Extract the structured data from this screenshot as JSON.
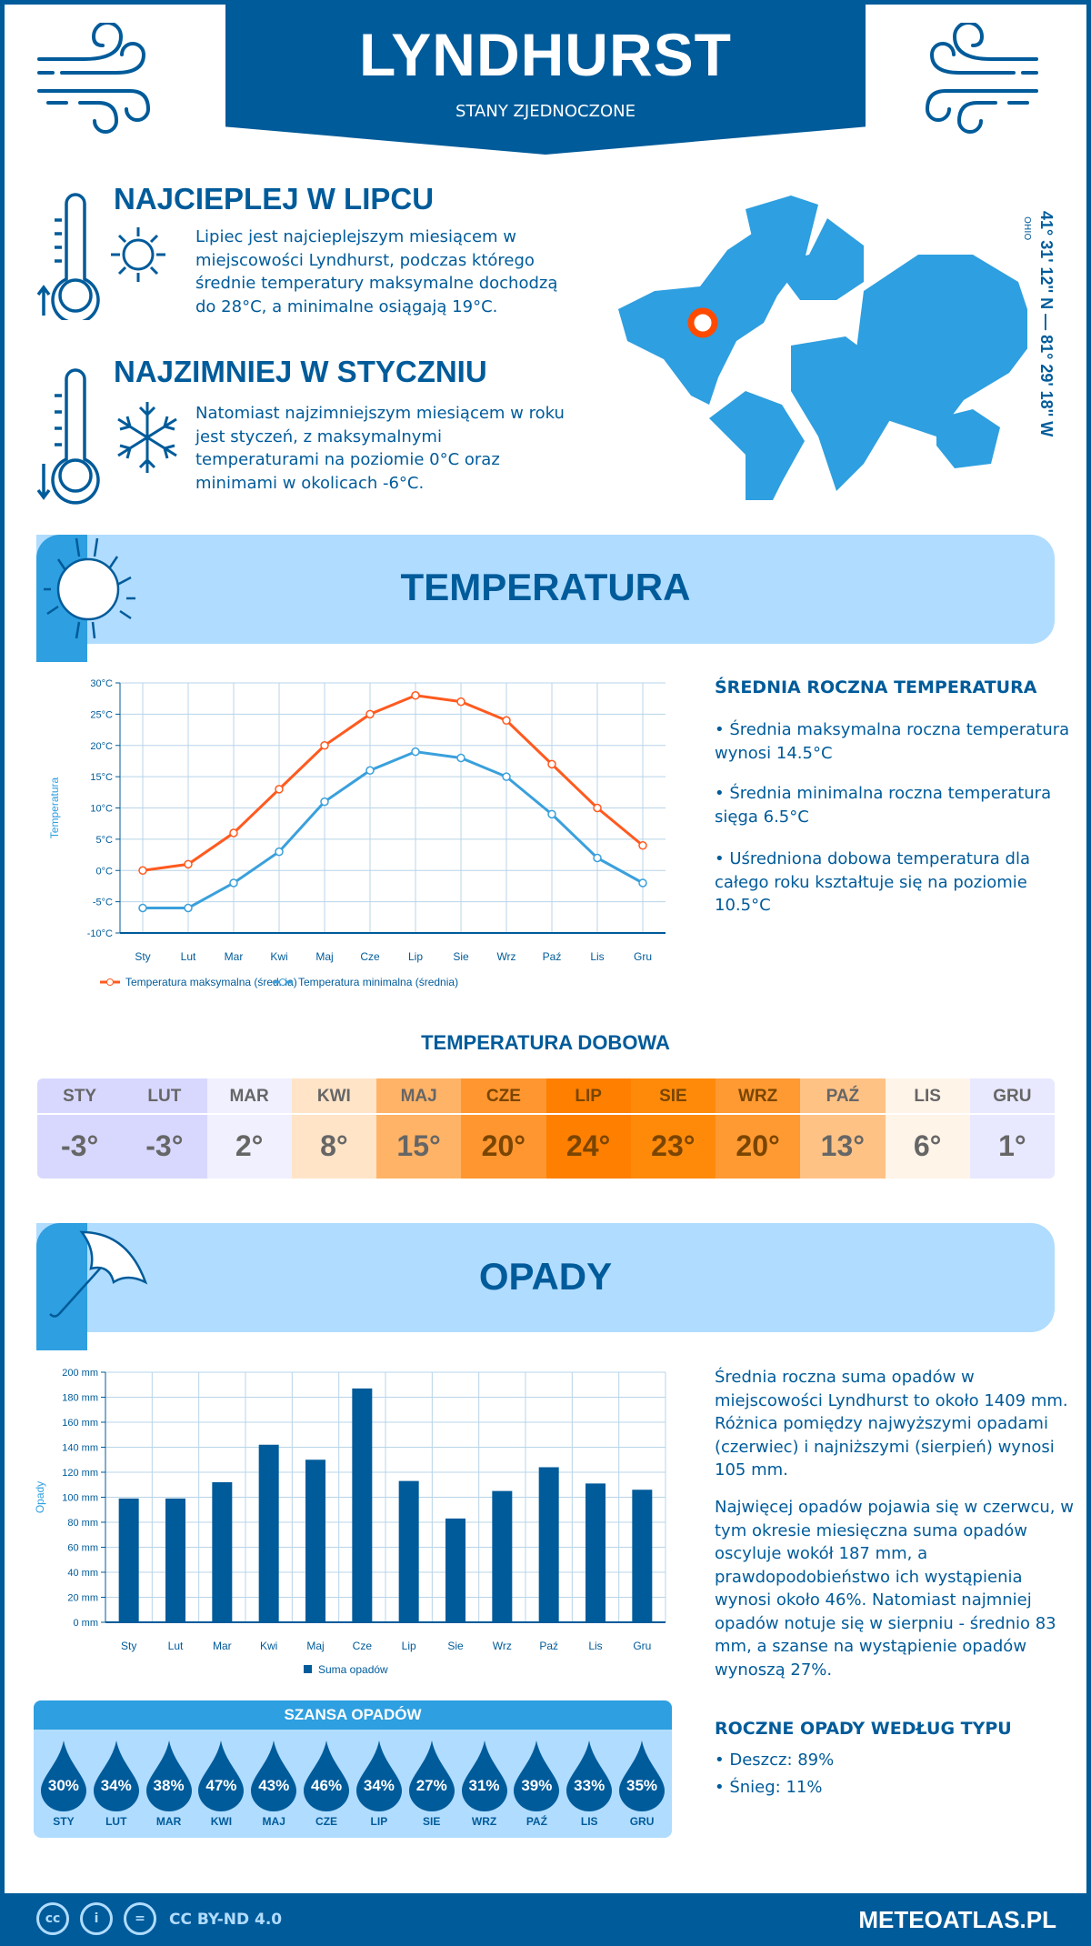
{
  "header": {
    "title": "LYNDHURST",
    "subtitle": "STANY ZJEDNOCZONE"
  },
  "warmest": {
    "heading": "NAJCIEPLEJ W LIPCU",
    "text": "Lipiec jest najcieplejszym miesiącem w miejscowości Lyndhurst, podczas którego średnie temperatury maksymalne dochodzą do 28°C, a minimalne osiągają 19°C."
  },
  "coldest": {
    "heading": "NAJZIMNIEJ W STYCZNIU",
    "text": "Natomiast najzimniejszym miesiącem w roku jest styczeń, z maksymalnymi temperaturami na poziomie 0°C oraz minimami w okolicach -6°C."
  },
  "location": {
    "coords": "41° 31' 12'' N — 81° 29' 18'' W",
    "region": "OHIO",
    "marker_color": "#ff4a00"
  },
  "temperature_section": {
    "title": "TEMPERATURA",
    "summary": {
      "heading": "ŚREDNIA ROCZNA TEMPERATURA",
      "bullets": [
        "• Średnia maksymalna roczna temperatura wynosi 14.5°C",
        "• Średnia minimalna roczna temperatura sięga 6.5°C",
        "• Uśredniona dobowa temperatura dla całego roku kształtuje się na poziomie 10.5°C"
      ]
    },
    "daily": {
      "title": "TEMPERATURA DOBOWA",
      "months": [
        "STY",
        "LUT",
        "MAR",
        "KWI",
        "MAJ",
        "CZE",
        "LIP",
        "SIE",
        "WRZ",
        "PAŹ",
        "LIS",
        "GRU"
      ],
      "values": [
        "-3°",
        "-3°",
        "2°",
        "8°",
        "15°",
        "20°",
        "24°",
        "23°",
        "20°",
        "13°",
        "6°",
        "1°"
      ],
      "colors": [
        "#d8d8ff",
        "#d8d8ff",
        "#f0f0ff",
        "#ffe4c8",
        "#ffb366",
        "#ff9630",
        "#ff7f00",
        "#ff8a0a",
        "#ff9a33",
        "#ffc285",
        "#fff4e8",
        "#e8e8ff"
      ]
    }
  },
  "precip_section": {
    "title": "OPADY",
    "text1": "Średnia roczna suma opadów w miejscowości Lyndhurst to około 1409 mm. Różnica pomiędzy najwyższymi opadami (czerwiec) i najniższymi (sierpień) wynosi 105 mm.",
    "text2": "Najwięcej opadów pojawia się w czerwcu, w tym okresie miesięczna suma opadów oscyluje wokół 187 mm, a prawdopodobieństwo ich wystąpienia wynosi około 46%. Natomiast najmniej opadów notuje się w sierpniu - średnio 83 mm, a szanse na wystąpienie opadów wynoszą 27%.",
    "chance": {
      "title": "SZANSA OPADÓW",
      "months": [
        "STY",
        "LUT",
        "MAR",
        "KWI",
        "MAJ",
        "CZE",
        "LIP",
        "SIE",
        "WRZ",
        "PAŹ",
        "LIS",
        "GRU"
      ],
      "values": [
        "30%",
        "34%",
        "38%",
        "47%",
        "43%",
        "46%",
        "34%",
        "27%",
        "31%",
        "39%",
        "33%",
        "35%"
      ]
    },
    "types": {
      "heading": "ROCZNE OPADY WEDŁUG TYPU",
      "items": [
        "• Deszcz: 89%",
        "• Śnieg: 11%"
      ]
    }
  },
  "chart_data": [
    {
      "type": "line",
      "categories": [
        "Sty",
        "Lut",
        "Mar",
        "Kwi",
        "Maj",
        "Cze",
        "Lip",
        "Sie",
        "Wrz",
        "Paź",
        "Lis",
        "Gru"
      ],
      "ylabel": "Temperatura",
      "ylim": [
        -10,
        30
      ],
      "yticks": [
        "-10°C",
        "-5°C",
        "0°C",
        "5°C",
        "10°C",
        "15°C",
        "20°C",
        "25°C",
        "30°C"
      ],
      "grid": true,
      "legend": "bottom",
      "series": [
        {
          "name": "Temperatura maksymalna (średnia)",
          "color": "#ff5a1f",
          "values": [
            0,
            1,
            6,
            13,
            20,
            25,
            28,
            27,
            24,
            17,
            10,
            4
          ]
        },
        {
          "name": "Temperatura minimalna (średnia)",
          "color": "#3aa0dc",
          "values": [
            -6,
            -6,
            -2,
            3,
            11,
            16,
            19,
            18,
            15,
            9,
            2,
            -2
          ]
        }
      ]
    },
    {
      "type": "bar",
      "categories": [
        "Sty",
        "Lut",
        "Mar",
        "Kwi",
        "Maj",
        "Cze",
        "Lip",
        "Sie",
        "Wrz",
        "Paź",
        "Lis",
        "Gru"
      ],
      "ylabel": "Opady",
      "ylim": [
        0,
        200
      ],
      "yticks": [
        "0 mm",
        "20 mm",
        "40 mm",
        "60 mm",
        "80 mm",
        "100 mm",
        "120 mm",
        "140 mm",
        "160 mm",
        "180 mm",
        "200 mm"
      ],
      "grid": true,
      "legend": "bottom",
      "series": [
        {
          "name": "Suma opadów",
          "color": "#005b9a",
          "values": [
            99,
            99,
            112,
            142,
            130,
            187,
            113,
            83,
            105,
            124,
            111,
            106
          ]
        }
      ]
    }
  ],
  "footer": {
    "license": "CC BY-ND 4.0",
    "site": "METEOATLAS.PL"
  }
}
